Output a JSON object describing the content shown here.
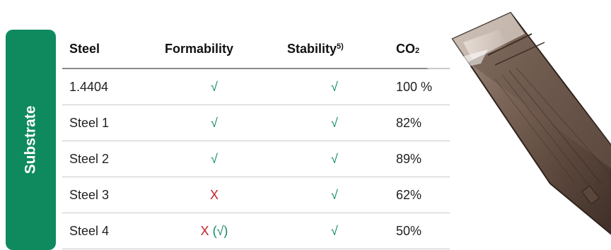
{
  "side_label": "Substrate",
  "table": {
    "headers": {
      "steel": "Steel",
      "formability": "Formability",
      "stability": "Stability",
      "stability_note": "5)",
      "co2_main": "CO",
      "co2_sub": "2"
    },
    "rows": [
      {
        "steel": "1.4404",
        "formability": "√",
        "formability_extra": "",
        "stability": "√",
        "co2": "100 %"
      },
      {
        "steel": "Steel 1",
        "formability": "√",
        "formability_extra": "",
        "stability": "√",
        "co2": "82%"
      },
      {
        "steel": "Steel 2",
        "formability": "√",
        "formability_extra": "",
        "stability": "√",
        "co2": "89%"
      },
      {
        "steel": "Steel 3",
        "formability": "X",
        "formability_extra": "",
        "stability": "√",
        "co2": "62%"
      },
      {
        "steel": "Steel 4",
        "formability": "X",
        "formability_extra": " (√)",
        "stability": "√",
        "co2": "50%"
      }
    ]
  },
  "colors": {
    "accent_green": "#0f8a5f",
    "cross_red": "#c0202a"
  },
  "image": {
    "icon": "bipolar-plate-photo"
  }
}
